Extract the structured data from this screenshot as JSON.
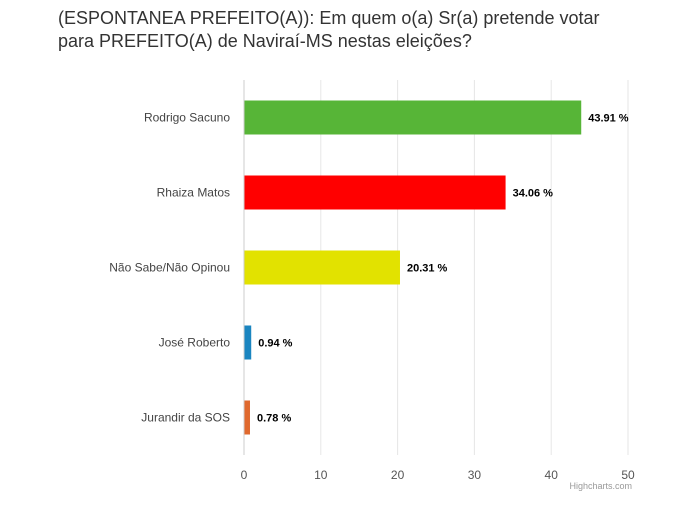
{
  "chart_data": {
    "type": "bar",
    "orientation": "horizontal",
    "title": "(ESPONTANEA PREFEITO(A)): Em quem o(a) Sr(a) pretende votar para PREFEITO(A) de Naviraí-MS nestas eleições?",
    "categories": [
      "Rodrigo Sacuno",
      "Rhaiza Matos",
      "Não Sabe/Não Opinou",
      "José Roberto",
      "Jurandir da SOS"
    ],
    "values": [
      43.91,
      34.06,
      20.31,
      0.94,
      0.78
    ],
    "data_labels": [
      "43.91 %",
      "34.06 %",
      "20.31 %",
      "0.94 %",
      "0.78 %"
    ],
    "bar_colors": [
      "#57b537",
      "#ff0000",
      "#e2e200",
      "#1a85c0",
      "#e0692e"
    ],
    "xlim": [
      0,
      50
    ],
    "x_ticks": [
      "0",
      "10",
      "20",
      "30",
      "40",
      "50"
    ],
    "xlabel": "",
    "ylabel": "",
    "grid": "vertical",
    "legend": "none"
  },
  "credit": "Highcharts.com"
}
